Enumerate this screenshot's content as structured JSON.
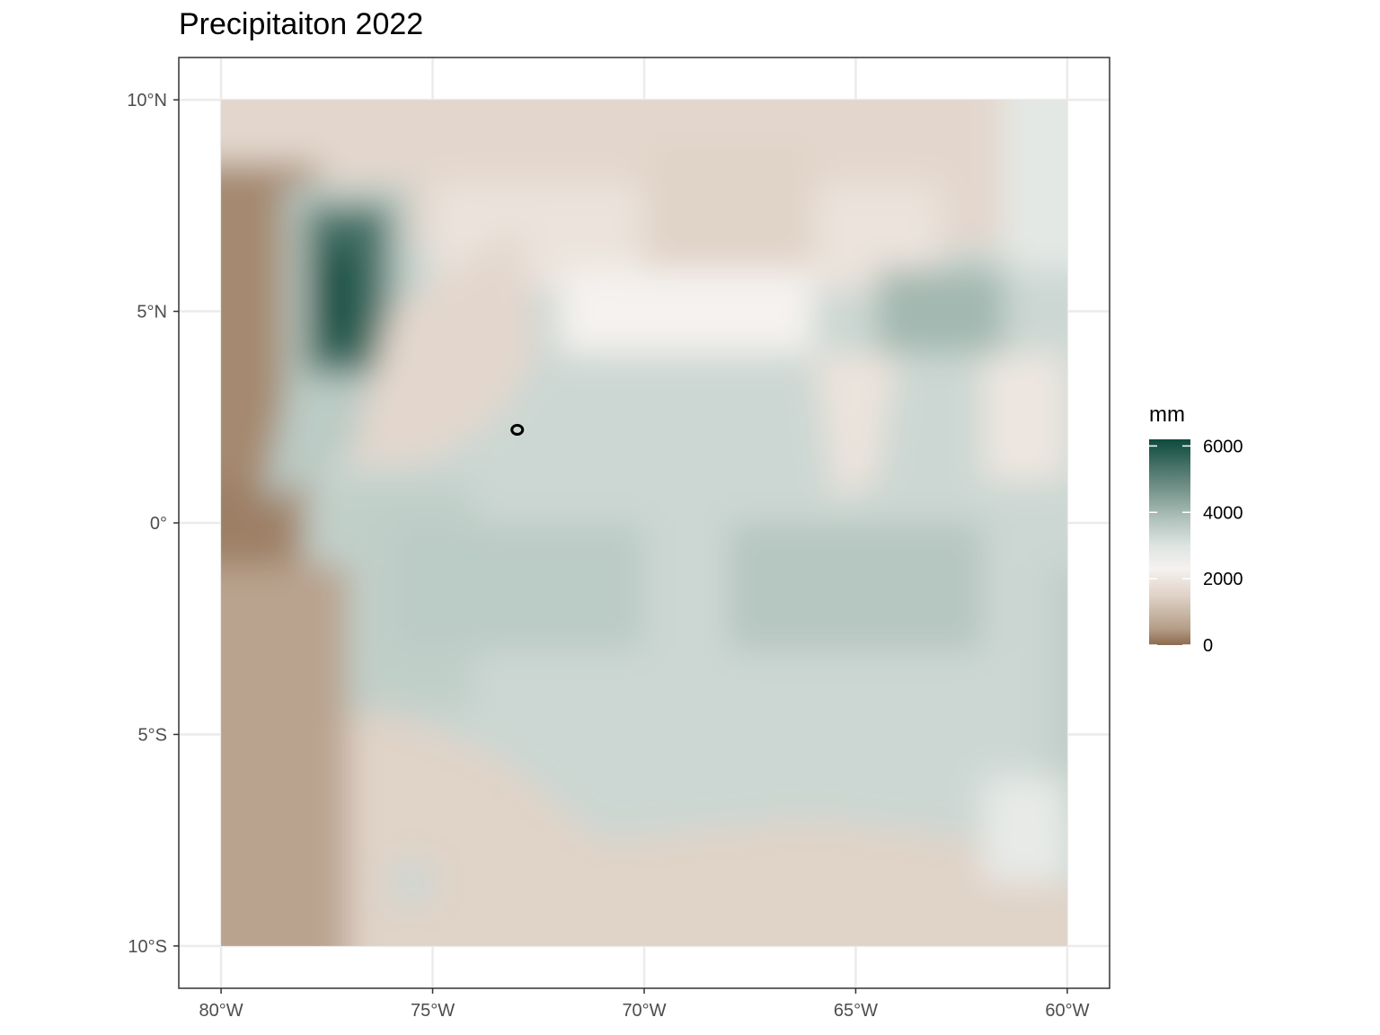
{
  "title": "Precipitaiton 2022",
  "chart_data": {
    "type": "heatmap",
    "title": "Precipitaiton 2022",
    "xlabel": "",
    "ylabel": "",
    "x_ticks": [
      {
        "value": -80,
        "label": "80°W"
      },
      {
        "value": -75,
        "label": "75°W"
      },
      {
        "value": -70,
        "label": "70°W"
      },
      {
        "value": -65,
        "label": "65°W"
      },
      {
        "value": -60,
        "label": "60°W"
      }
    ],
    "y_ticks": [
      {
        "value": 10,
        "label": "10°N"
      },
      {
        "value": 5,
        "label": "5°N"
      },
      {
        "value": 0,
        "label": "0°"
      },
      {
        "value": -5,
        "label": "5°S"
      },
      {
        "value": -10,
        "label": "10°S"
      }
    ],
    "xlim": [
      -81,
      -59
    ],
    "ylim": [
      -11,
      11
    ],
    "grid": true,
    "legend": {
      "title": "mm",
      "placement": "right",
      "min": 0,
      "max": 6200,
      "breaks": [
        {
          "value": 0,
          "label": "0"
        },
        {
          "value": 2000,
          "label": "2000"
        },
        {
          "value": 4000,
          "label": "4000"
        },
        {
          "value": 6000,
          "label": "6000"
        }
      ],
      "colors": [
        "#8d6a4e",
        "#b59e87",
        "#e0d3c8",
        "#f5f2ef",
        "#dde4e1",
        "#b0c2bb",
        "#6f8e85",
        "#0e4a3d"
      ],
      "color_stops": [
        0,
        500,
        1500,
        2300,
        3000,
        3800,
        4800,
        6200
      ]
    },
    "marker": {
      "lon": -73.0,
      "lat": 2.2
    }
  }
}
